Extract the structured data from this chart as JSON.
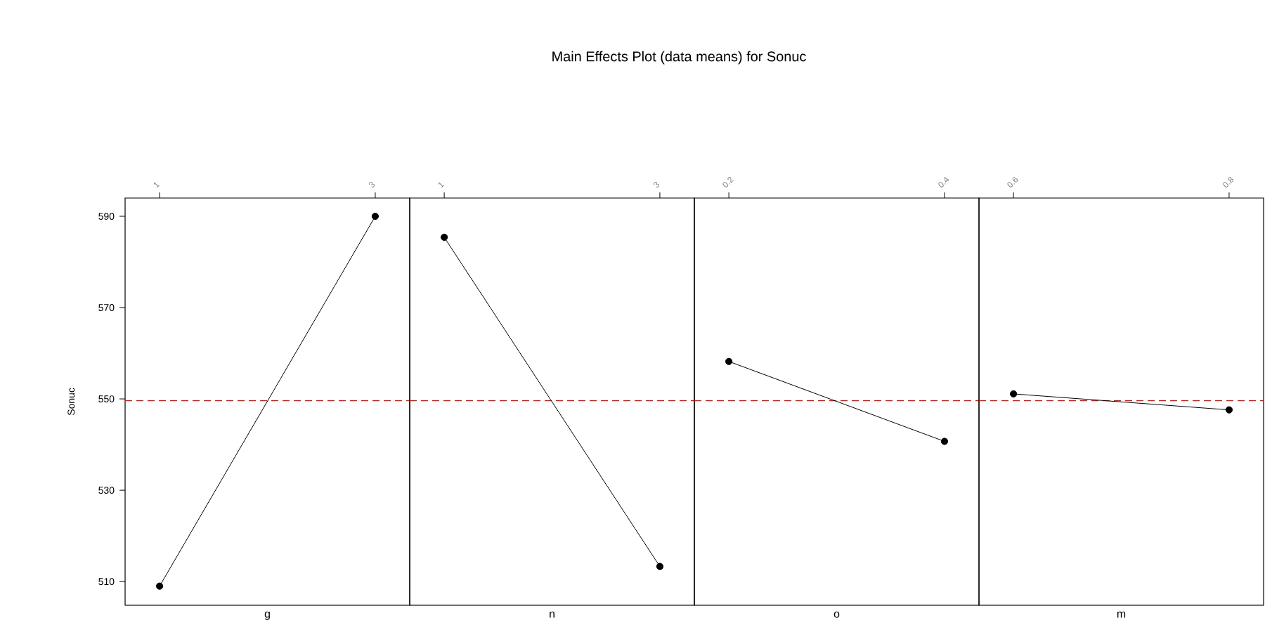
{
  "chart_data": [
    {
      "type": "line",
      "xlabel": "g",
      "ylabel": "Sonuc",
      "x": [
        1,
        3
      ],
      "series": [
        {
          "color": "#000000",
          "values": [
            509,
            590
          ]
        }
      ],
      "xlim": [
        0.68,
        3.32
      ],
      "xticks": [
        1,
        3
      ],
      "ylim": [
        504.8,
        594
      ],
      "yticks": [
        510,
        530,
        550,
        570,
        590
      ],
      "ref_lines": [
        {
          "axis": "y",
          "value": 549.6,
          "color": "#ff0000",
          "line_style": "dashed"
        }
      ],
      "marker": "circle",
      "line_style": "solid"
    },
    {
      "type": "line",
      "title": "Main Effects Plot (data means) for Sonuc",
      "xlabel": "n",
      "x": [
        1,
        3
      ],
      "series": [
        {
          "color": "#000000",
          "values": [
            585.4,
            513.3
          ]
        }
      ],
      "xlim": [
        0.68,
        3.32
      ],
      "xticks": [
        1,
        3
      ],
      "ylim": [
        504.8,
        594
      ],
      "tick_labels": "x",
      "ref_lines": [
        {
          "axis": "y",
          "value": 549.6,
          "color": "#ff0000",
          "line_style": "dashed"
        }
      ],
      "marker": "circle",
      "line_style": "solid"
    },
    {
      "type": "line",
      "xlabel": "o",
      "x": [
        0.2,
        0.4
      ],
      "series": [
        {
          "color": "#000000",
          "values": [
            558.2,
            540.7
          ]
        }
      ],
      "xlim": [
        0.168,
        0.432
      ],
      "xticks": [
        0.2,
        0.4
      ],
      "ylim": [
        504.8,
        594
      ],
      "tick_labels": "x",
      "ref_lines": [
        {
          "axis": "y",
          "value": 549.6,
          "color": "#ff0000",
          "line_style": "dashed"
        }
      ],
      "marker": "circle",
      "line_style": "solid"
    },
    {
      "type": "line",
      "xlabel": "m",
      "x": [
        0.6,
        0.8
      ],
      "series": [
        {
          "color": "#000000",
          "values": [
            551.1,
            547.6
          ]
        }
      ],
      "xlim": [
        0.568,
        0.832
      ],
      "xticks": [
        0.6,
        0.8
      ],
      "ylim": [
        504.8,
        594
      ],
      "tick_labels": "x",
      "ref_lines": [
        {
          "axis": "y",
          "value": 549.6,
          "color": "#ff0000",
          "line_style": "dashed"
        }
      ],
      "marker": "circle",
      "line_style": "solid"
    }
  ]
}
